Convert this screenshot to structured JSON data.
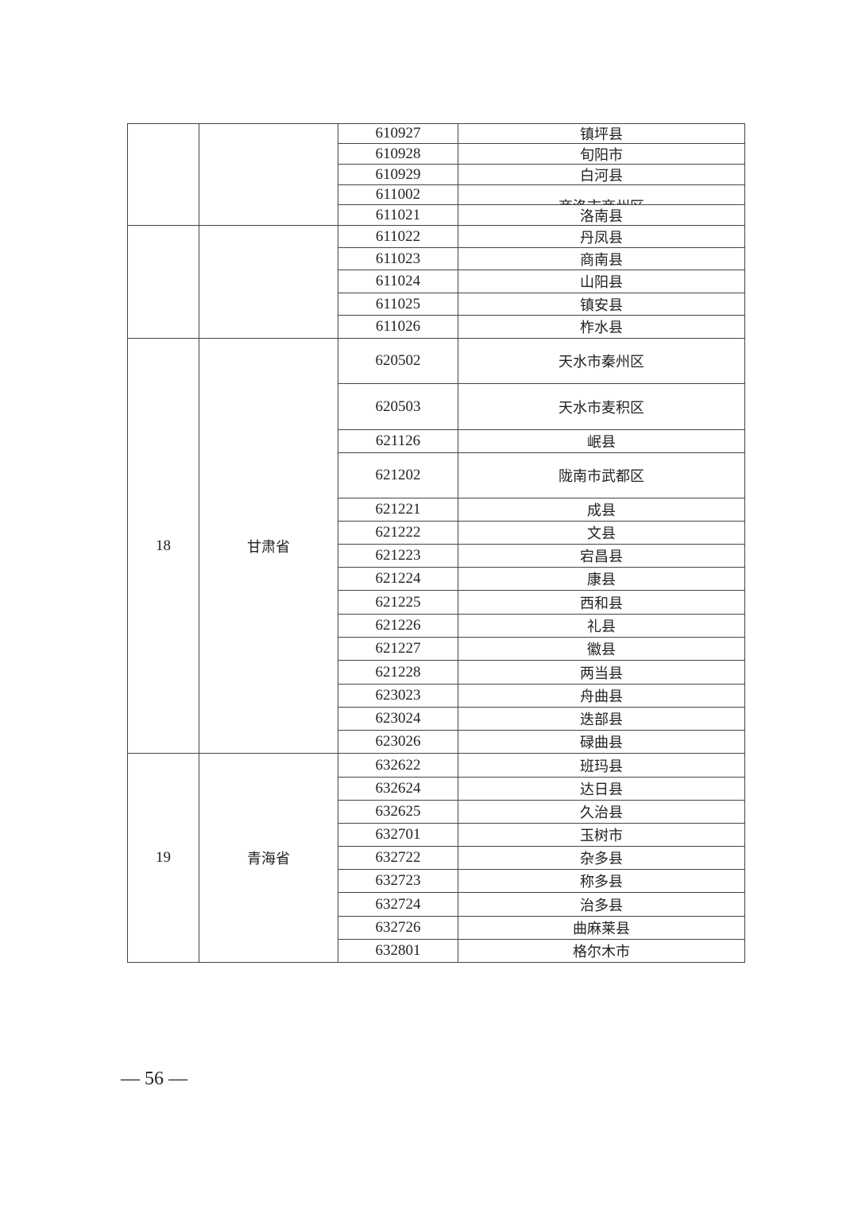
{
  "groups": [
    {
      "no": "",
      "province": "",
      "rows": [
        [
          "610927",
          "镇坪县"
        ],
        [
          "610928",
          "旬阳市"
        ],
        [
          "610929",
          "白河县"
        ],
        [
          "611002",
          "商洛市商州区"
        ],
        [
          "611021",
          "洛南县"
        ]
      ]
    },
    {
      "no": "",
      "province": "",
      "rows": [
        [
          "611022",
          "丹凤县"
        ],
        [
          "611023",
          "商南县"
        ],
        [
          "611024",
          "山阳县"
        ],
        [
          "611025",
          "镇安县"
        ],
        [
          "611026",
          "柞水县"
        ]
      ]
    },
    {
      "no": "18",
      "province": "甘肃省",
      "rows": [
        [
          "620502",
          "天水市秦州区"
        ],
        [
          "620503",
          "天水市麦积区"
        ],
        [
          "621126",
          "岷县"
        ],
        [
          "621202",
          "陇南市武都区"
        ],
        [
          "621221",
          "成县"
        ],
        [
          "621222",
          "文县"
        ],
        [
          "621223",
          "宕昌县"
        ],
        [
          "621224",
          "康县"
        ],
        [
          "621225",
          "西和县"
        ],
        [
          "621226",
          "礼县"
        ],
        [
          "621227",
          "徽县"
        ],
        [
          "621228",
          "两当县"
        ],
        [
          "623023",
          "舟曲县"
        ],
        [
          "623024",
          "迭部县"
        ],
        [
          "623026",
          "碌曲县"
        ]
      ]
    },
    {
      "no": "19",
      "province": "青海省",
      "rows": [
        [
          "632622",
          "班玛县"
        ],
        [
          "632624",
          "达日县"
        ],
        [
          "632625",
          "久治县"
        ],
        [
          "632701",
          "玉树市"
        ],
        [
          "632722",
          "杂多县"
        ],
        [
          "632723",
          "称多县"
        ],
        [
          "632724",
          "治多县"
        ],
        [
          "632726",
          "曲麻莱县"
        ],
        [
          "632801",
          "格尔木市"
        ]
      ]
    }
  ],
  "page_number": "— 56 —"
}
